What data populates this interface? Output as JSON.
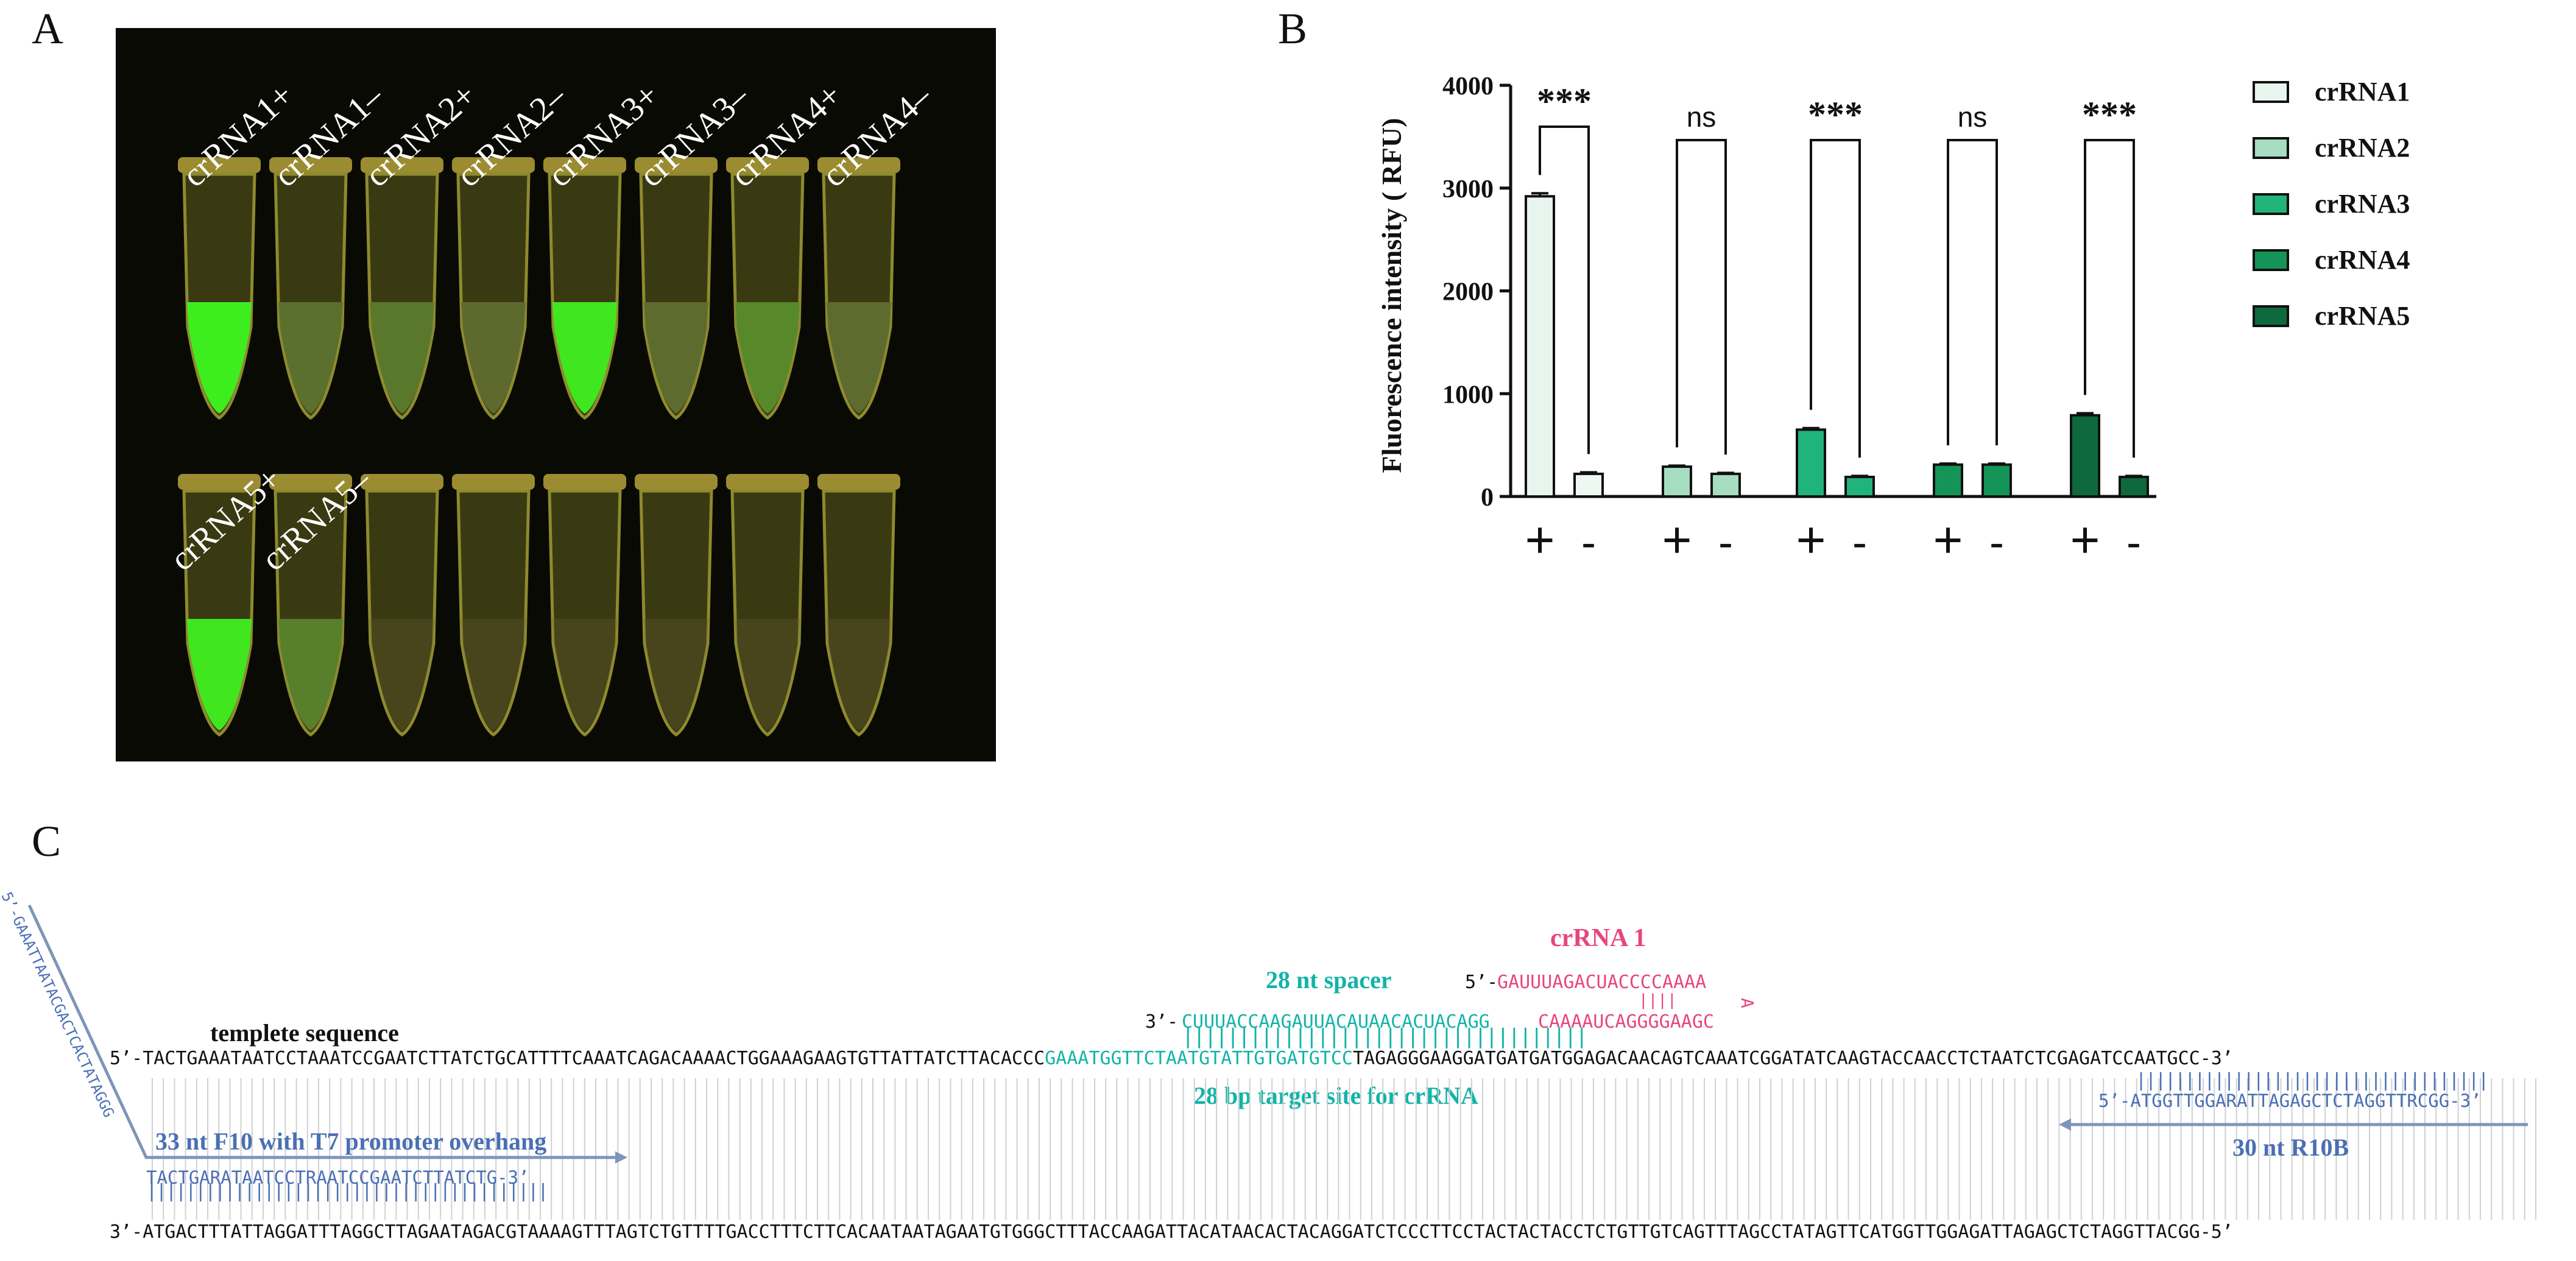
{
  "panels": {
    "a": "A",
    "b": "B",
    "c": "C"
  },
  "panel_a": {
    "row1_labels": [
      "crRNA1+",
      "crRNA1–",
      "crRNA2+",
      "crRNA2–",
      "crRNA3+",
      "crRNA3–",
      "crRNA4+",
      "crRNA4–"
    ],
    "row2_labels": [
      "crRNA5+",
      "crRNA5–"
    ],
    "row1_fluorescence": [
      0.95,
      0.15,
      0.2,
      0.1,
      0.9,
      0.12,
      0.3,
      0.12
    ],
    "row2_fluorescence": [
      0.9,
      0.25,
      0,
      0,
      0,
      0,
      0,
      0
    ]
  },
  "chart_data": {
    "type": "bar",
    "categories": [
      "+",
      "-",
      "+",
      "-",
      "+",
      "-",
      "+",
      "-",
      "+",
      "-"
    ],
    "groups": [
      "crRNA1",
      "crRNA2",
      "crRNA3",
      "crRNA4",
      "crRNA5"
    ],
    "values": [
      2920,
      220,
      290,
      220,
      650,
      190,
      310,
      310,
      790,
      190
    ],
    "errors": [
      30,
      15,
      10,
      10,
      15,
      10,
      10,
      10,
      20,
      10
    ],
    "ylabel": "Fluorescence intensity ( RFU)",
    "ylim": [
      0,
      4000
    ],
    "yticks": [
      0,
      1000,
      2000,
      3000,
      4000
    ],
    "significance": [
      "***",
      "ns",
      "***",
      "ns",
      "***"
    ],
    "legend": {
      "position": "right",
      "entries": [
        {
          "name": "crRNA1",
          "color": "#e8f5ee"
        },
        {
          "name": "crRNA2",
          "color": "#a6dcc0"
        },
        {
          "name": "crRNA3",
          "color": "#20b37a"
        },
        {
          "name": "crRNA4",
          "color": "#149457"
        },
        {
          "name": "crRNA5",
          "color": "#0e6a3d"
        }
      ]
    }
  },
  "panel_c": {
    "crrna_title": "crRNA 1",
    "crrna_5": "5’-",
    "crrna_seq": "GAUUUAGACUACCCCAAAA",
    "crrna_loop_end": "A",
    "crrna_stem_seq": "CAAAAUCAGGGGAAGC",
    "spacer_label": "28 nt spacer",
    "spacer_3": "3’-",
    "spacer_seq": "CUUUACCAAGAUUACAUAACACUACAGG",
    "template_label": "templete sequence",
    "target_label": "28 bp target site for crRNA",
    "top_5": "5’-",
    "top_seq_a": "TACTGAAATAATCCTAAATCCGAATCTTATCTGCATTTTCAAATCAGACAAAACTGGAAAGAAGTGTTATTATCTTACACCC",
    "top_seq_target": "GAAATGGTTCTAATGTATTGTGATGTCC",
    "top_seq_b": "TAGAGGGAAGGATGATGATGGAGACAACAGTCAAATCGGATATCAAGTACCAACCTCTAATCTCGAGATCCAATGCC",
    "top_3": "-3’",
    "bottom_3": "3’-",
    "bottom_seq": "ATGACTTTATTAGGATTTAGGCTTAGAATAGACGTAAAAGTTTAGTCTGTTTTGACCTTTCTTCACAATAATAGAATGTGGGCTTTACCAAGATTACATAACACTACAGGATCTCCCTTCCTACTACTACCTCTGTTGTCAGTTTAGCCTATAGTTCATGGTTGGAGATTAGAGCTCTAGGTTACGG",
    "bottom_5": "-5’",
    "f10_overhang": "5’-GAAATTAATACGACTCACTATAGGG",
    "f10_seq": "TACTGARATAATCCTRAATCCGAATCTTATCTG-3’",
    "f10_label": "33 nt F10 with T7 promoter overhang",
    "r10_seq": "5’-ATGGTTGGARATTAGAGCTCTAGGTTRCGG-3’",
    "r10_label": "30 nt R10B",
    "colors": {
      "primer": "#4a6fb5",
      "spacer": "#12b3a8",
      "crrna": "#e8457e",
      "arrow": "#7d95b8"
    }
  }
}
